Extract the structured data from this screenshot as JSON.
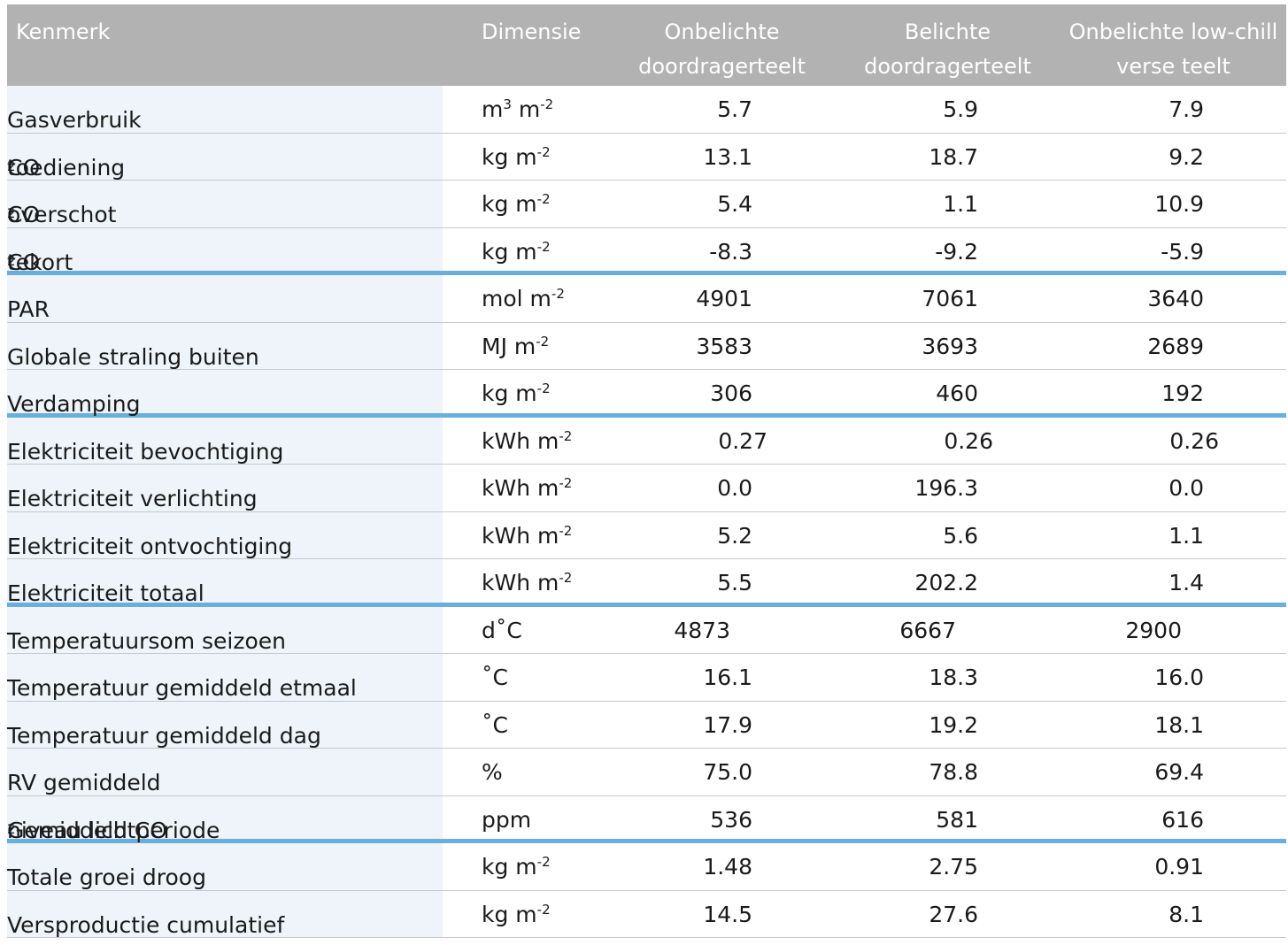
{
  "headers": {
    "kenmerk": "Kenmerk",
    "dimensie": "Dimensie",
    "col1_line1": "Onbelichte",
    "col1_line2": "doordragerteelt",
    "col2_line1": "Belichte",
    "col2_line2": "doordragerteelt",
    "col3_line1": "Onbelichte low-chill",
    "col3_line2": "verse teelt"
  },
  "rows": [
    {
      "label_pre": "Gasverbruik",
      "label_sub": "",
      "label_post": "",
      "unit_base": "m",
      "unit_sup1": "3",
      "unit_mid": " m",
      "unit_sup2": "-2",
      "v1": "5.7",
      "v2": "5.9",
      "v3": "7.9",
      "group_end": false
    },
    {
      "label_pre": "CO",
      "label_sub": "2",
      "label_post": " toediening",
      "unit_base": "kg m",
      "unit_sup1": "-2",
      "unit_mid": "",
      "unit_sup2": "",
      "v1": "13.1",
      "v2": "18.7",
      "v3": "9.2",
      "group_end": false
    },
    {
      "label_pre": "CO",
      "label_sub": "2",
      "label_post": " overschot",
      "unit_base": "kg m",
      "unit_sup1": "-2",
      "unit_mid": "",
      "unit_sup2": "",
      "v1": "5.4",
      "v2": "1.1",
      "v3": "10.9",
      "group_end": false
    },
    {
      "label_pre": "CO",
      "label_sub": "2",
      "label_post": " tekort",
      "unit_base": "kg m",
      "unit_sup1": "-2",
      "unit_mid": "",
      "unit_sup2": "",
      "v1": "-8.3",
      "v2": "-9.2",
      "v3": "-5.9",
      "group_end": true
    },
    {
      "label_pre": "PAR",
      "label_sub": "",
      "label_post": "",
      "unit_base": "mol m",
      "unit_sup1": "-2",
      "unit_mid": "",
      "unit_sup2": "",
      "v1": "4901",
      "v2": "7061",
      "v3": "3640",
      "group_end": false
    },
    {
      "label_pre": "Globale straling buiten",
      "label_sub": "",
      "label_post": "",
      "unit_base": "MJ m",
      "unit_sup1": "-2",
      "unit_mid": "",
      "unit_sup2": "",
      "v1": "3583",
      "v2": "3693",
      "v3": "2689",
      "group_end": false
    },
    {
      "label_pre": "Verdamping",
      "label_sub": "",
      "label_post": "",
      "unit_base": "kg m",
      "unit_sup1": "-2",
      "unit_mid": "",
      "unit_sup2": "",
      "v1": "306",
      "v2": "460",
      "v3": "192",
      "group_end": true
    },
    {
      "label_pre": "Elektriciteit bevochtiging",
      "label_sub": "",
      "label_post": "",
      "unit_base": "kWh m",
      "unit_sup1": "-2",
      "unit_mid": "",
      "unit_sup2": "",
      "v1": "0.27",
      "v2": "0.26",
      "v3": "0.26",
      "group_end": false,
      "align": "w3"
    },
    {
      "label_pre": "Elektriciteit verlichting",
      "label_sub": "",
      "label_post": "",
      "unit_base": "kWh m",
      "unit_sup1": "-2",
      "unit_mid": "",
      "unit_sup2": "",
      "v1": "0.0",
      "v2": "196.3",
      "v3": "0.0",
      "group_end": false
    },
    {
      "label_pre": "Elektriciteit ontvochtiging",
      "label_sub": "",
      "label_post": "",
      "unit_base": "kWh m",
      "unit_sup1": "-2",
      "unit_mid": "",
      "unit_sup2": "",
      "v1": "5.2",
      "v2": "5.6",
      "v3": "1.1",
      "group_end": false
    },
    {
      "label_pre": "Elektriciteit totaal",
      "label_sub": "",
      "label_post": "",
      "unit_base": "kWh m",
      "unit_sup1": "-2",
      "unit_mid": "",
      "unit_sup2": "",
      "v1": "5.5",
      "v2": "202.2",
      "v3": "1.4",
      "group_end": true
    },
    {
      "label_pre": "Temperatuursom seizoen",
      "label_sub": "",
      "label_post": "",
      "unit_base": "d˚C",
      "unit_sup1": "",
      "unit_mid": "",
      "unit_sup2": "",
      "v1": "4873",
      "v2": "6667",
      "v3": "2900",
      "group_end": false,
      "align": "w4"
    },
    {
      "label_pre": "Temperatuur gemiddeld etmaal",
      "label_sub": "",
      "label_post": "",
      "unit_base": "˚C",
      "unit_sup1": "",
      "unit_mid": "",
      "unit_sup2": "",
      "v1": "16.1",
      "v2": "18.3",
      "v3": "16.0",
      "group_end": false
    },
    {
      "label_pre": "Temperatuur gemiddeld dag",
      "label_sub": "",
      "label_post": "",
      "unit_base": "˚C",
      "unit_sup1": "",
      "unit_mid": "",
      "unit_sup2": "",
      "v1": "17.9",
      "v2": "19.2",
      "v3": "18.1",
      "group_end": false
    },
    {
      "label_pre": "RV gemiddeld",
      "label_sub": "",
      "label_post": "",
      "unit_base": "%",
      "unit_sup1": "",
      "unit_mid": "",
      "unit_sup2": "",
      "v1": "75.0",
      "v2": "78.8",
      "v3": "69.4",
      "group_end": false
    },
    {
      "label_pre": "Gemiddeld CO",
      "label_sub": "2",
      "label_post": " niveau lichtperiode",
      "unit_base": "ppm",
      "unit_sup1": "",
      "unit_mid": "",
      "unit_sup2": "",
      "v1": "536",
      "v2": "581",
      "v3": "616",
      "group_end": true
    },
    {
      "label_pre": "Totale groei droog",
      "label_sub": "",
      "label_post": "",
      "unit_base": "kg m",
      "unit_sup1": "-2",
      "unit_mid": "",
      "unit_sup2": "",
      "v1": "1.48",
      "v2": "2.75",
      "v3": "0.91",
      "group_end": false
    },
    {
      "label_pre": "Versproductie cumulatief",
      "label_sub": "",
      "label_post": "",
      "unit_base": "kg m",
      "unit_sup1": "-2",
      "unit_mid": "",
      "unit_sup2": "",
      "v1": "14.5",
      "v2": "27.6",
      "v3": "8.1",
      "group_end": false
    }
  ]
}
